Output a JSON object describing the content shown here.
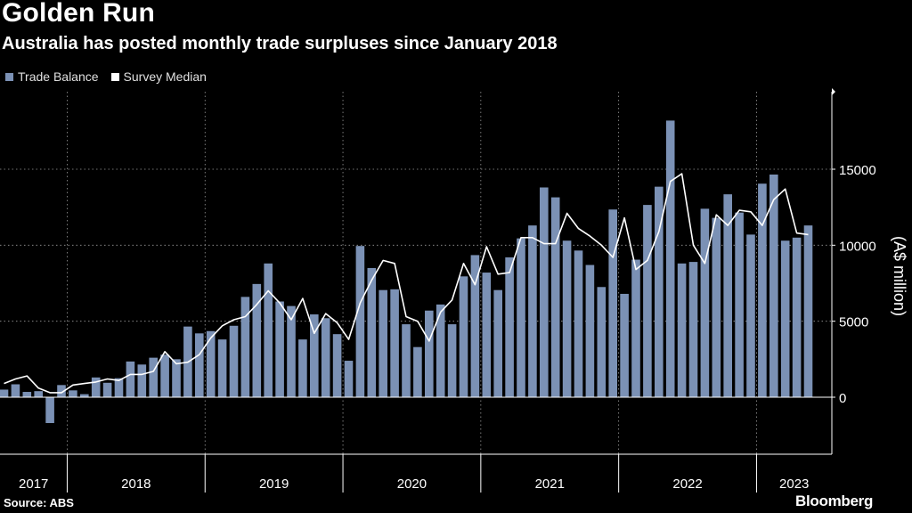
{
  "header": {
    "title": "Golden Run",
    "subtitle": "Australia has posted monthly trade surpluses since January 2018"
  },
  "footer": {
    "source": "Source: ABS",
    "brand": "Bloomberg"
  },
  "colors": {
    "bar": "#7b91b5",
    "line": "#ffffff",
    "grid": "#9a9a9a",
    "background": "#000000"
  },
  "chart_data": {
    "type": "bar",
    "ylabel": "(A$ million)",
    "ylim": [
      -3500,
      20000
    ],
    "yticks": [
      0,
      5000,
      10000,
      15000
    ],
    "grid": true,
    "legend_position": "top-left",
    "x_start": "2017-07",
    "year_labels": [
      "2017",
      "2018",
      "2019",
      "2020",
      "2021",
      "2022",
      "2023"
    ],
    "series": [
      {
        "name": "Trade Balance",
        "type": "bar",
        "values": [
          500,
          850,
          350,
          400,
          -1700,
          800,
          450,
          200,
          1300,
          950,
          1250,
          2350,
          2150,
          2600,
          2800,
          2500,
          4650,
          4200,
          4350,
          3800,
          4700,
          6600,
          7450,
          8800,
          6300,
          6000,
          3800,
          5450,
          5200,
          4150,
          2400,
          9950,
          8500,
          7050,
          7100,
          4800,
          3300,
          5700,
          6100,
          4800,
          7950,
          9350,
          8200,
          7050,
          9200,
          10450,
          11300,
          13800,
          13150,
          10300,
          9650,
          8700,
          7250,
          12350,
          6800,
          9050,
          12650,
          13850,
          18200,
          8800,
          8900,
          12400,
          11800,
          13350,
          12150,
          10700,
          14050,
          14650,
          10300,
          10500,
          11300
        ]
      },
      {
        "name": "Survey Median",
        "type": "line",
        "values": [
          900,
          1200,
          1400,
          600,
          300,
          300,
          800,
          900,
          1000,
          1200,
          1100,
          1500,
          1500,
          1700,
          3000,
          2200,
          2300,
          2800,
          3900,
          4700,
          5100,
          5300,
          6100,
          7000,
          6200,
          5100,
          6500,
          4200,
          5500,
          4900,
          3800,
          6200,
          7700,
          9000,
          8800,
          5300,
          5000,
          3700,
          5600,
          6400,
          8800,
          7400,
          9900,
          8100,
          8200,
          10500,
          10500,
          10100,
          10100,
          12100,
          11100,
          10600,
          10000,
          9200,
          11800,
          8400,
          9000,
          10900,
          14200,
          14700,
          10000,
          8800,
          12000,
          11300,
          12300,
          12200,
          11300,
          13000,
          13700,
          10800,
          10700
        ]
      }
    ]
  }
}
